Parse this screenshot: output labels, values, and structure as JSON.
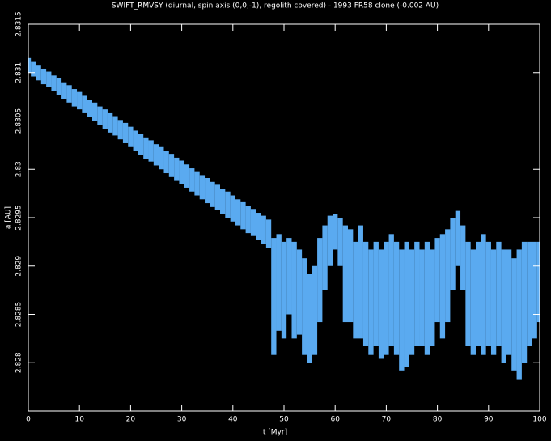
{
  "chart_data": {
    "type": "range",
    "title": "SWIFT_RMVSY (diurnal, spin axis (0,0,-1), regolith covered) - 1993 FR58 clone (-0.002 AU)",
    "xlabel": "t [Myr]",
    "ylabel": "a [AU]",
    "color": "#5aaaf0",
    "xlim": [
      0,
      100
    ],
    "xticks": [
      0,
      10,
      20,
      30,
      40,
      50,
      60,
      70,
      80,
      90,
      100
    ],
    "ylim": [
      2.8275,
      2.8315
    ],
    "yticks": [
      2.8315,
      2.831,
      2.8305,
      2.83,
      2.8295,
      2.829,
      2.8285,
      2.828
    ],
    "x": [
      0,
      1,
      2,
      3,
      4,
      5,
      6,
      7,
      8,
      9,
      10,
      11,
      12,
      13,
      14,
      15,
      16,
      17,
      18,
      19,
      20,
      21,
      22,
      23,
      24,
      25,
      26,
      27,
      28,
      29,
      30,
      31,
      32,
      33,
      34,
      35,
      36,
      37,
      38,
      39,
      40,
      41,
      42,
      43,
      44,
      45,
      46,
      47,
      48,
      49,
      50,
      51,
      52,
      53,
      54,
      55,
      56,
      57,
      58,
      59,
      60,
      61,
      62,
      63,
      64,
      65,
      66,
      67,
      68,
      69,
      70,
      71,
      72,
      73,
      74,
      75,
      76,
      77,
      78,
      79,
      80,
      81,
      82,
      83,
      84,
      85,
      86,
      87,
      88,
      89,
      90,
      91,
      92,
      93,
      94,
      95,
      96,
      97,
      98,
      99,
      100
    ],
    "series": [
      {
        "values": [
          2.83115,
          2.83111,
          2.83108,
          2.83104,
          2.83101,
          2.83097,
          2.83094,
          2.8309,
          2.83087,
          2.83083,
          2.8308,
          2.83076,
          2.83072,
          2.83069,
          2.83065,
          2.83062,
          2.83058,
          2.83055,
          2.83051,
          2.83048,
          2.83044,
          2.8304,
          2.83037,
          2.83033,
          2.8303,
          2.83026,
          2.83023,
          2.83019,
          2.83016,
          2.83012,
          2.83009,
          2.83005,
          2.83001,
          2.82998,
          2.82994,
          2.82991,
          2.82987,
          2.82984,
          2.8298,
          2.82977,
          2.82973,
          2.82969,
          2.82966,
          2.82962,
          2.82959,
          2.82955,
          2.82952,
          2.82948,
          2.82929,
          2.82933,
          2.82925,
          2.82929,
          2.82925,
          2.82917,
          2.82908,
          2.82892,
          2.829,
          2.82929,
          2.82942,
          2.82952,
          2.82954,
          2.8295,
          2.82942,
          2.82938,
          2.82925,
          2.82942,
          2.82925,
          2.82917,
          2.82925,
          2.82917,
          2.82925,
          2.82933,
          2.82925,
          2.82917,
          2.82925,
          2.82917,
          2.82925,
          2.82917,
          2.82925,
          2.82917,
          2.82929,
          2.82933,
          2.82938,
          2.8295,
          2.82957,
          2.82942,
          2.82925,
          2.82917,
          2.82925,
          2.82933,
          2.82925,
          2.82917,
          2.82925,
          2.82917,
          2.82917,
          2.82908,
          2.82917,
          2.82925,
          2.82925,
          2.82925,
          2.82925
        ]
      },
      {
        "values": [
          2.831,
          2.83096,
          2.83092,
          2.83088,
          2.83085,
          2.83081,
          2.83077,
          2.83073,
          2.83069,
          2.83065,
          2.83062,
          2.83058,
          2.83054,
          2.8305,
          2.83046,
          2.83042,
          2.83038,
          2.83035,
          2.83031,
          2.83027,
          2.83023,
          2.83019,
          2.83015,
          2.83011,
          2.83008,
          2.83004,
          2.83,
          2.82996,
          2.82992,
          2.82988,
          2.82985,
          2.82981,
          2.82977,
          2.82973,
          2.82969,
          2.82965,
          2.82961,
          2.82958,
          2.82954,
          2.8295,
          2.82946,
          2.82942,
          2.82938,
          2.82934,
          2.82931,
          2.82927,
          2.82923,
          2.82919,
          2.82808,
          2.82833,
          2.82825,
          2.8285,
          2.82825,
          2.82829,
          2.82808,
          2.828,
          2.82808,
          2.82842,
          2.82875,
          2.829,
          2.82917,
          2.829,
          2.82842,
          2.82842,
          2.82825,
          2.82825,
          2.82817,
          2.82808,
          2.82817,
          2.82804,
          2.82808,
          2.82817,
          2.82808,
          2.82792,
          2.82796,
          2.82808,
          2.82817,
          2.82817,
          2.82808,
          2.82817,
          2.82842,
          2.82825,
          2.82842,
          2.82875,
          2.829,
          2.82875,
          2.82817,
          2.82808,
          2.82817,
          2.82808,
          2.82817,
          2.82808,
          2.82817,
          2.828,
          2.82808,
          2.82792,
          2.82783,
          2.828,
          2.82817,
          2.82825,
          2.82842
        ]
      }
    ]
  }
}
